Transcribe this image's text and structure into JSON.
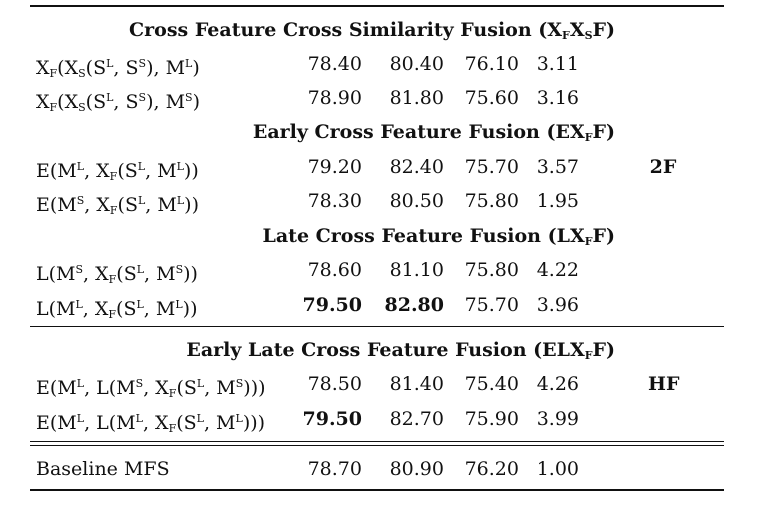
{
  "sections": [
    {
      "id": "s1",
      "header": "Cross Feature Cross Similarity Fusion (XₒXₛF)"
    },
    {
      "id": "s2",
      "header": "Early Cross Feature Fusion (EXₒF)"
    },
    {
      "id": "s3",
      "header": "Late Cross Feature Fusion (LXₒF)"
    },
    {
      "id": "s4",
      "header": "Early Late Cross Feature Fusion (ELXₒF)"
    }
  ],
  "rows": [
    {
      "label": "XF(XS(SL, SS), ML)",
      "values": [
        "78.40",
        "80.40",
        "76.10",
        "3.11"
      ]
    },
    {
      "label": "XF(XS(SL, SS), MS)",
      "values": [
        "78.90",
        "81.80",
        "75.60",
        "3.16"
      ]
    },
    {
      "label": "E(ML, XF(SL, ML))",
      "values": [
        "79.20",
        "82.40",
        "75.70",
        "3.57"
      ]
    },
    {
      "label": "E(MS, XF(SL, ML))",
      "values": [
        "78.30",
        "80.50",
        "75.80",
        "1.95"
      ]
    },
    {
      "label": "L(MS, XF(SL, MS))",
      "values": [
        "78.60",
        "81.10",
        "75.80",
        "4.22"
      ]
    },
    {
      "label": "L(ML, XF(SL, ML))",
      "values": [
        "79.50",
        "82.80",
        "75.70",
        "3.96"
      ]
    },
    {
      "label": "E(ML, L(MS, XF(SL, MS)))",
      "values": [
        "78.50",
        "81.40",
        "75.40",
        "4.26"
      ]
    },
    {
      "label": "E(ML, L(ML, XF(SL, ML)))",
      "values": [
        "79.50",
        "82.70",
        "75.90",
        "3.99"
      ]
    },
    {
      "label": "Baseline MFS",
      "values": [
        "78.70",
        "80.90",
        "76.20",
        "1.00"
      ]
    }
  ],
  "groups": {
    "g1": "2F",
    "g2": "HF"
  }
}
